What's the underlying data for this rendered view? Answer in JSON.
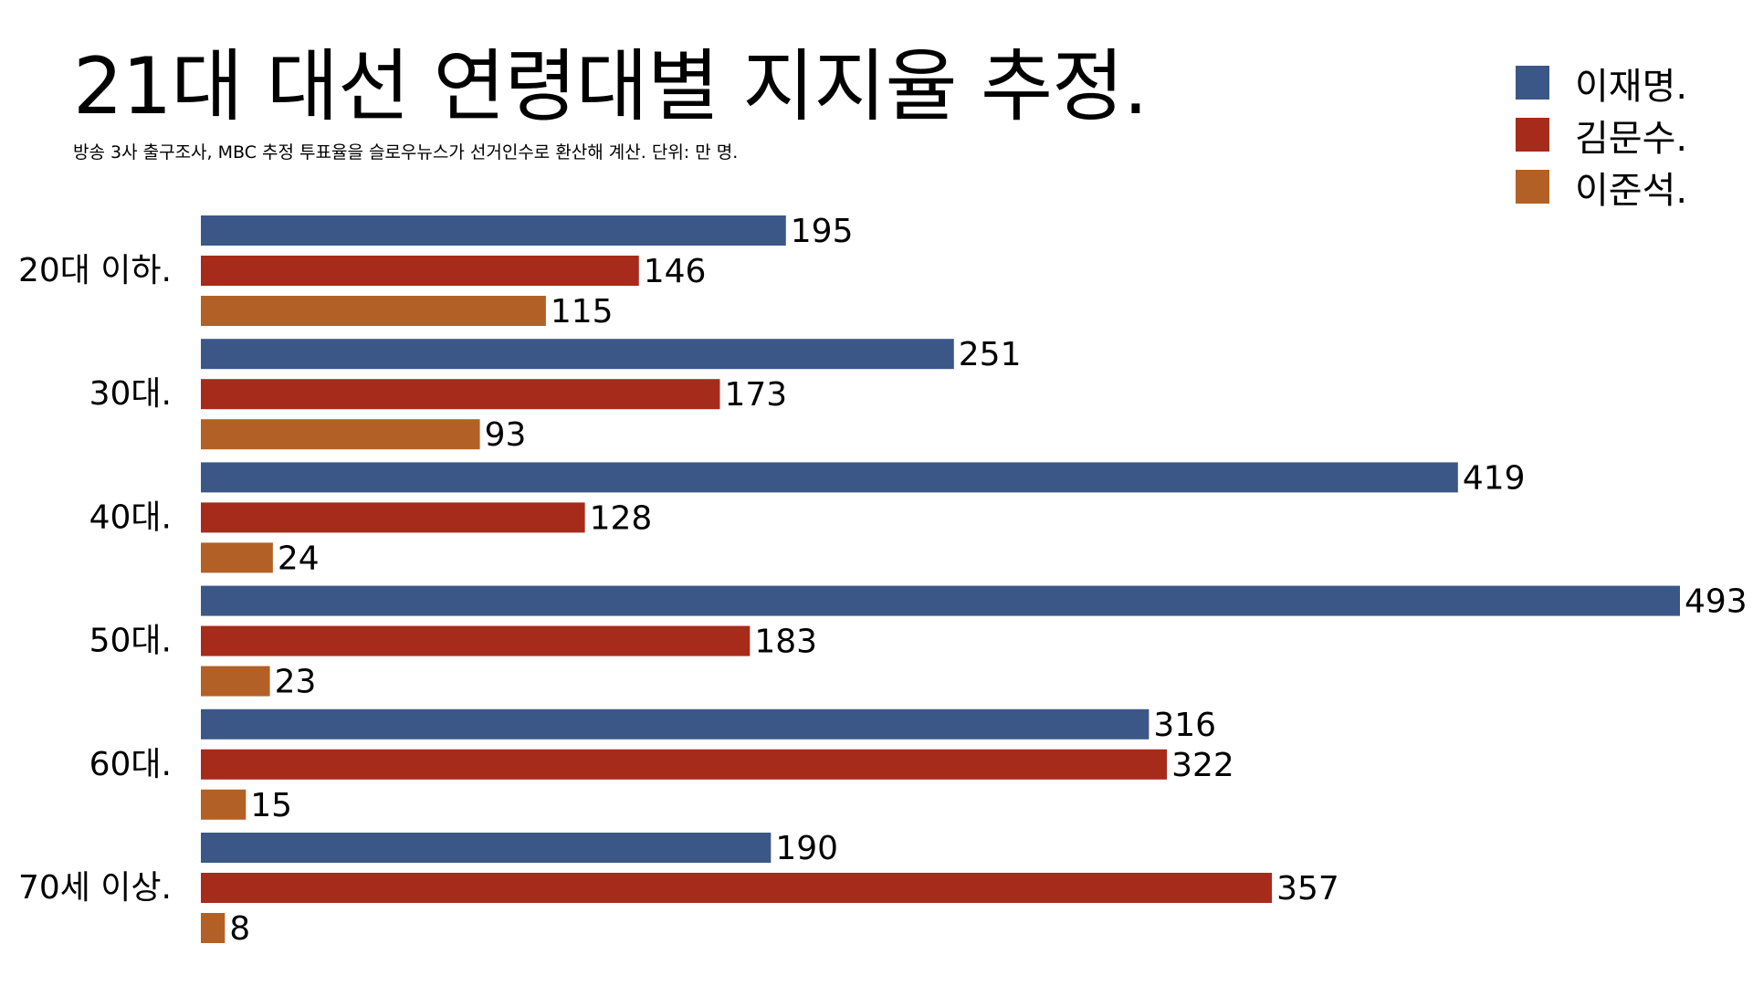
{
  "chart_data": {
    "type": "bar",
    "orientation": "horizontal",
    "title": "21대 대선 연령대별 지지율 추정.",
    "subtitle": "방송 3사 출구조사, MBC 추정 투표율을 슬로우뉴스가 선거인수로 환산해 계산.  단위: 만 명.",
    "categories": [
      "20대 이하.",
      "30대.",
      "40대.",
      "50대.",
      "60대.",
      "70세 이상."
    ],
    "series": [
      {
        "name": "이재명.",
        "color": "#3a5788",
        "values": [
          195,
          251,
          419,
          493,
          316,
          190
        ]
      },
      {
        "name": "김문수.",
        "color": "#a62b1b",
        "values": [
          146,
          173,
          128,
          183,
          322,
          357
        ]
      },
      {
        "name": "이준석.",
        "color": "#b36026",
        "values": [
          115,
          93,
          24,
          23,
          15,
          8
        ]
      }
    ],
    "xlim": [
      0,
      493
    ],
    "grid": false,
    "legend": "top-right",
    "data_labels": true
  }
}
